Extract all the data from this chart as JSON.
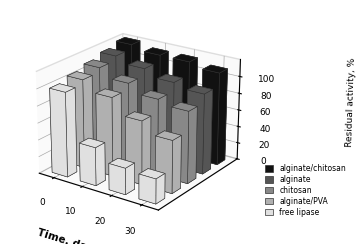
{
  "xlabel": "Time, days",
  "ylabel": "Residual activity, %",
  "x_ticks": [
    0,
    10,
    20,
    30
  ],
  "series": [
    {
      "label": "free lipase",
      "color": "#e0e0e0",
      "values": [
        100,
        45,
        31,
        29
      ]
    },
    {
      "label": "alginate/PVA",
      "color": "#b0b0b0",
      "values": [
        105,
        93,
        75,
        62
      ]
    },
    {
      "label": "chitosan",
      "color": "#888888",
      "values": [
        110,
        100,
        90,
        85
      ]
    },
    {
      "label": "alginate",
      "color": "#555555",
      "values": [
        115,
        108,
        100,
        95
      ]
    },
    {
      "label": "alginate/chitosan",
      "color": "#111111",
      "values": [
        120,
        115,
        115,
        110
      ]
    }
  ],
  "zlim": [
    0,
    120
  ],
  "zticks": [
    0,
    20,
    40,
    60,
    80,
    100
  ],
  "bar_width": 0.55,
  "bar_depth": 0.55,
  "elev": 22,
  "azim": -55,
  "legend_labels_order": [
    "alginate/chitosan",
    "alginate",
    "chitosan",
    "alginate/PVA",
    "free lipase"
  ]
}
